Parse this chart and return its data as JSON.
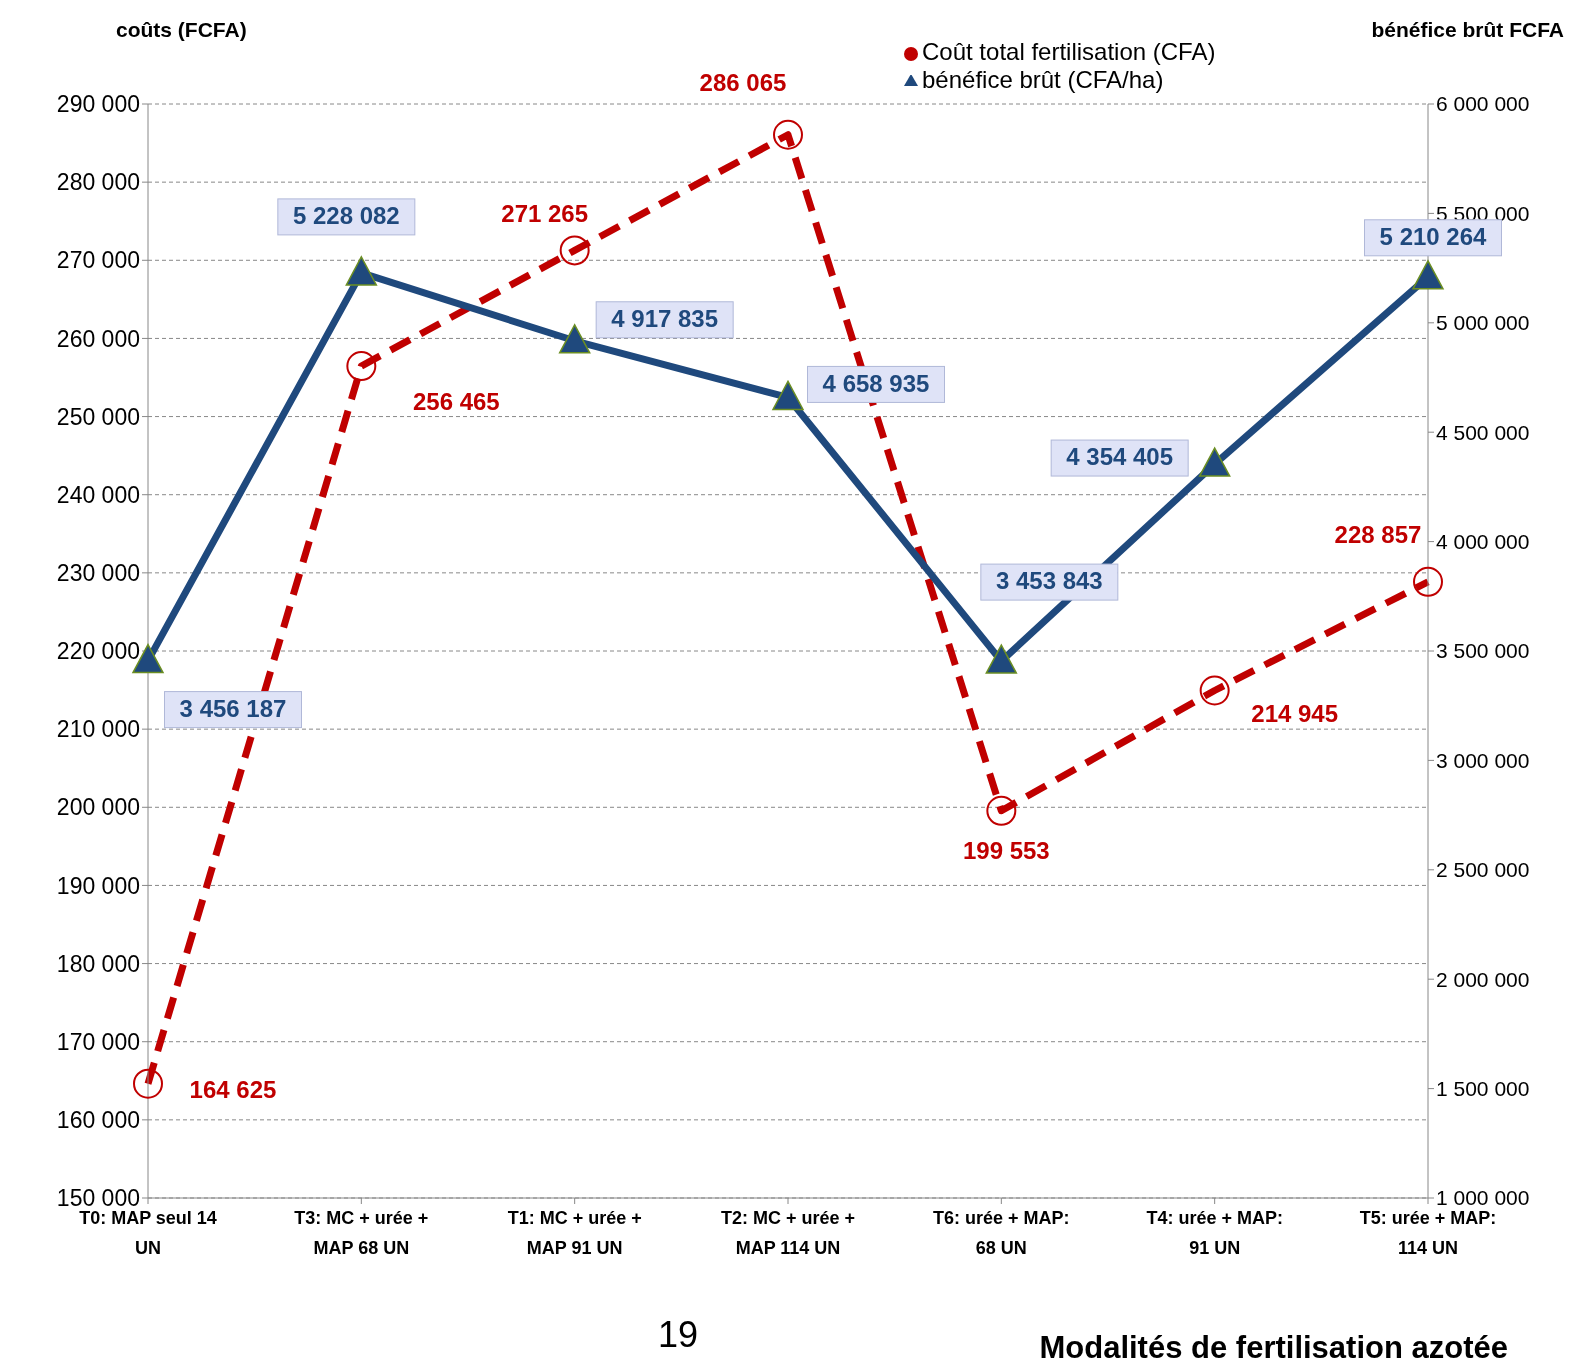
{
  "chart_data": {
    "type": "line",
    "ylabel": "coûts (FCFA)",
    "y2label": "bénéfice brût FCFA",
    "xlabel": "Modalités de fertilisation azotée",
    "categories": [
      "T0: MAP seul 14 UN",
      "T3: MC  + urée + MAP 68 UN",
      "T1: MC + urée + MAP 91 UN",
      "T2: MC  + urée + MAP 114 UN",
      "T6: urée + MAP: 68 UN",
      "T4: urée + MAP: 91 UN",
      "T5: urée + MAP: 114 UN"
    ],
    "series": [
      {
        "name": "Coût total fertilisation (CFA)",
        "color": "#c00000",
        "marker": "circle",
        "line_style": "dashed",
        "values": [
          164625,
          256465,
          271265,
          286065,
          199553,
          214945,
          228857
        ],
        "value_labels": [
          "164 625",
          "256 465",
          "271 265",
          "286 065",
          "199 553",
          "214 945",
          "228 857"
        ]
      },
      {
        "name": "bénéfice brût (CFA/ha)",
        "color": "#1f497d",
        "marker": "triangle",
        "line_style": "solid",
        "axis": "y2",
        "values": [
          3456187,
          5228082,
          4917835,
          4658935,
          3453843,
          4354405,
          5210264
        ],
        "value_labels": [
          "3 456 187",
          "5 228 082",
          "4 917 835",
          "4 658 935",
          "3 453 843",
          "4 354 405",
          "5 210 264"
        ]
      }
    ],
    "ylim": [
      150000,
      290000
    ],
    "yticks": [
      {
        "value": 150000,
        "label": "150 000"
      },
      {
        "value": 160000,
        "label": "160 000"
      },
      {
        "value": 170000,
        "label": "170 000"
      },
      {
        "value": 180000,
        "label": "180 000"
      },
      {
        "value": 190000,
        "label": "190 000"
      },
      {
        "value": 200000,
        "label": "200 000"
      },
      {
        "value": 210000,
        "label": "210 000"
      },
      {
        "value": 220000,
        "label": "220 000"
      },
      {
        "value": 230000,
        "label": "230 000"
      },
      {
        "value": 240000,
        "label": "240 000"
      },
      {
        "value": 250000,
        "label": "250 000"
      },
      {
        "value": 260000,
        "label": "260 000"
      },
      {
        "value": 270000,
        "label": "270 000"
      },
      {
        "value": 280000,
        "label": "280 000"
      },
      {
        "value": 290000,
        "label": "290 000"
      }
    ],
    "y2lim": [
      1000000,
      6000000
    ],
    "y2ticks": [
      {
        "value": 1000000,
        "label": "1 000 000"
      },
      {
        "value": 1500000,
        "label": "1 500 000"
      },
      {
        "value": 2000000,
        "label": "2 000 000"
      },
      {
        "value": 2500000,
        "label": "2 500 000"
      },
      {
        "value": 3000000,
        "label": "3 000 000"
      },
      {
        "value": 3500000,
        "label": "3 500 000"
      },
      {
        "value": 4000000,
        "label": "4 000 000"
      },
      {
        "value": 4500000,
        "label": "4 500 000"
      },
      {
        "value": 5000000,
        "label": "5 000 000"
      },
      {
        "value": 5500000,
        "label": "5 500 000"
      },
      {
        "value": 6000000,
        "label": "6 000 000"
      }
    ],
    "grid": "y",
    "legend": "top right",
    "annotations": [
      "19"
    ]
  }
}
